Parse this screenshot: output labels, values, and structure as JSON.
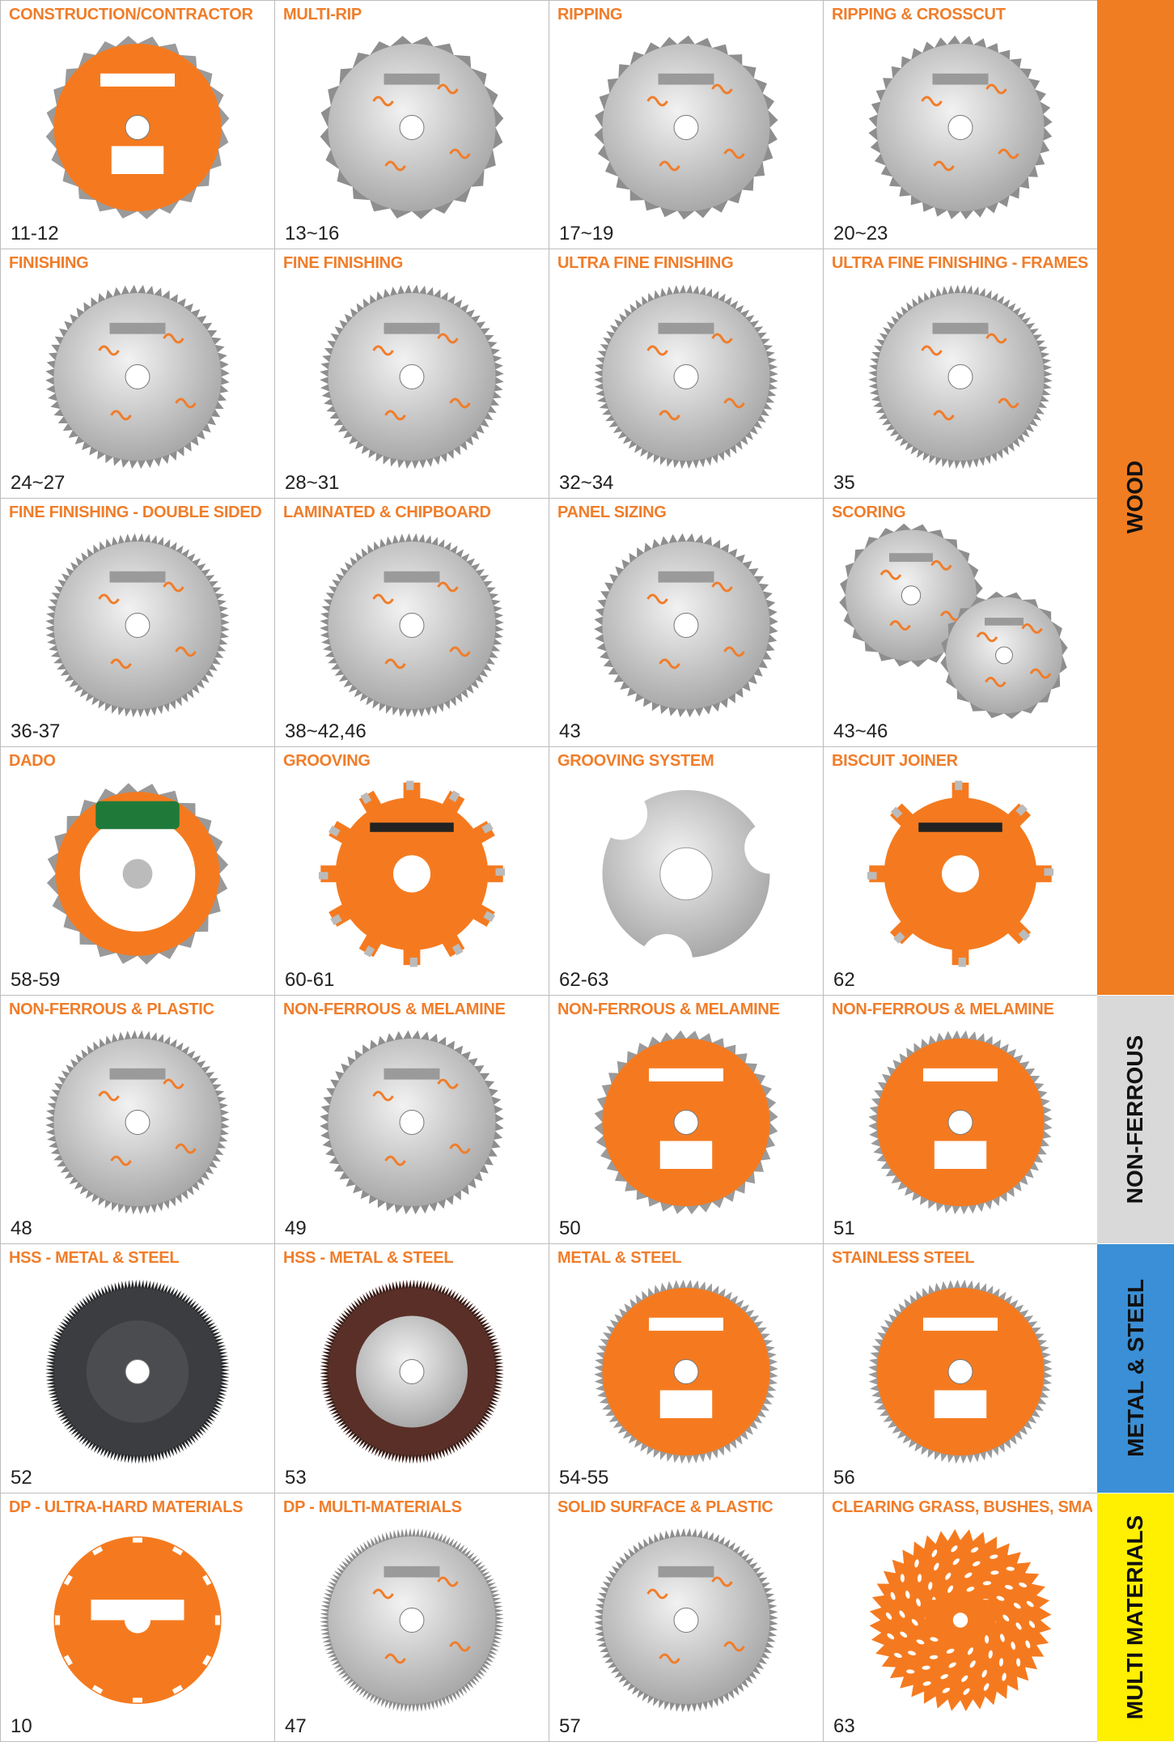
{
  "cells": [
    {
      "title": "CONSTRUCTION/CONTRACTOR",
      "pages": "11-12",
      "style": "orange",
      "teeth": 24
    },
    {
      "title": "MULTI-RIP",
      "pages": "13~16",
      "style": "silver",
      "teeth": 24
    },
    {
      "title": "RIPPING",
      "pages": "17~19",
      "style": "silver",
      "teeth": 30
    },
    {
      "title": "RIPPING & CROSSCUT",
      "pages": "20~23",
      "style": "silver",
      "teeth": 40
    },
    {
      "title": "FINISHING",
      "pages": "24~27",
      "style": "silver",
      "teeth": 64
    },
    {
      "title": "FINE FINISHING",
      "pages": "28~31",
      "style": "silver",
      "teeth": 72
    },
    {
      "title": "ULTRA FINE FINISHING",
      "pages": "32~34",
      "style": "silver",
      "teeth": 80
    },
    {
      "title": "ULTRA FINE FINISHING - FRAMES",
      "pages": "35",
      "style": "silver",
      "teeth": 84
    },
    {
      "title": "FINE FINISHING - DOUBLE SIDED",
      "pages": "36-37",
      "style": "silver",
      "teeth": 80
    },
    {
      "title": "LAMINATED & CHIPBOARD",
      "pages": "38~42,46",
      "style": "silver",
      "teeth": 80
    },
    {
      "title": "PANEL SIZING",
      "pages": "43",
      "style": "silver",
      "teeth": 60
    },
    {
      "title": "SCORING",
      "pages": "43~46",
      "style": "scoring",
      "teeth": 24
    },
    {
      "title": "DADO",
      "pages": "58-59",
      "style": "dado",
      "teeth": 24
    },
    {
      "title": "GROOVING",
      "pages": "60-61",
      "style": "grooving",
      "teeth": 12
    },
    {
      "title": "GROOVING SYSTEM",
      "pages": "62-63",
      "style": "groovsys",
      "teeth": 3
    },
    {
      "title": "BISCUIT JOINER",
      "pages": "62",
      "style": "grooving",
      "teeth": 8
    },
    {
      "title": "NON-FERROUS & PLASTIC",
      "pages": "48",
      "style": "silver",
      "teeth": 80
    },
    {
      "title": "NON-FERROUS & MELAMINE",
      "pages": "49",
      "style": "silver",
      "teeth": 60
    },
    {
      "title": "NON-FERROUS & MELAMINE",
      "pages": "50",
      "style": "orange",
      "teeth": 40
    },
    {
      "title": "NON-FERROUS & MELAMINE",
      "pages": "51",
      "style": "orange",
      "teeth": 64
    },
    {
      "title": "HSS - METAL & STEEL",
      "pages": "52",
      "style": "hss-dark",
      "teeth": 160
    },
    {
      "title": "HSS - METAL & STEEL",
      "pages": "53",
      "style": "hss-bronze",
      "teeth": 160
    },
    {
      "title": "METAL & STEEL",
      "pages": "54-55",
      "style": "orange",
      "teeth": 80
    },
    {
      "title": "STAINLESS STEEL",
      "pages": "56",
      "style": "orange",
      "teeth": 80
    },
    {
      "title": "DP - ULTRA-HARD MATERIALS",
      "pages": "10",
      "style": "dp-orange",
      "teeth": 12
    },
    {
      "title": "DP - MULTI-MATERIALS",
      "pages": "47",
      "style": "silver",
      "teeth": 140
    },
    {
      "title": "SOLID SURFACE & PLASTIC",
      "pages": "57",
      "style": "silver",
      "teeth": 96
    },
    {
      "title": "CLEARING GRASS, BUSHES, SMALL TREES",
      "pages": "63",
      "style": "brush",
      "teeth": 40
    }
  ],
  "side_labels": [
    {
      "text": "WOOD",
      "color": "#f07d22",
      "rows": 4
    },
    {
      "text": "NON-FERROUS",
      "color": "#d9d9d9",
      "rows": 1
    },
    {
      "text": "METAL & STEEL",
      "color": "#3a8fd6",
      "rows": 1
    },
    {
      "text": "MULTI MATERIALS",
      "color": "#ffef00",
      "rows": 1
    }
  ],
  "colors": {
    "accent": "#f07d2a",
    "orange_blade": "#f57a1f",
    "silver_blade": "#c9c9c9"
  }
}
